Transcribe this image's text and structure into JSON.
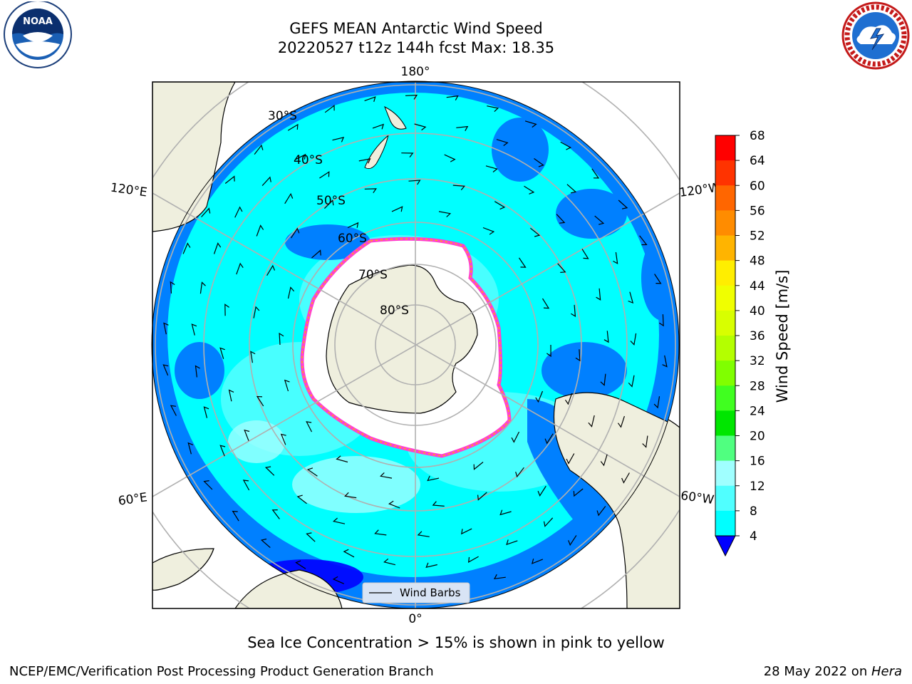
{
  "title": {
    "line1": "GEFS MEAN Antarctic Wind Speed",
    "line2": "20220527 t12z 144h fcst   Max: 18.35"
  },
  "map": {
    "projection": "south-polar-stereographic",
    "longitude_labels": {
      "top": "180°",
      "bottom": "0°",
      "upper_left": "120°E",
      "upper_right": "120°W",
      "lower_left": "60°E",
      "lower_right": "60°W"
    },
    "latitude_labels": [
      "30°S",
      "40°S",
      "50°S",
      "60°S",
      "70°S",
      "80°S"
    ],
    "legend_label": "Wind Barbs"
  },
  "colorbar": {
    "label": "Wind Speed [m/s]",
    "ticks": [
      "68",
      "64",
      "60",
      "56",
      "52",
      "48",
      "44",
      "40",
      "36",
      "32",
      "28",
      "24",
      "20",
      "16",
      "12",
      "8",
      "4"
    ],
    "colors": [
      "#ff0000",
      "#ff3300",
      "#ff6600",
      "#ff8c00",
      "#ffb400",
      "#ffee00",
      "#f0ff00",
      "#d8ff00",
      "#b4ff00",
      "#80ff00",
      "#40ff20",
      "#00e600",
      "#50ff80",
      "#a0ffff",
      "#50ffff",
      "#00ffff",
      "#0080ff"
    ],
    "underflow_color": "#0000ff"
  },
  "caption": "Sea Ice Concentration > 15% is shown in pink to yellow",
  "footer": {
    "left": "NCEP/EMC/Verification Post Processing Product Generation Branch",
    "right_date": "28 May 2022 on ",
    "right_host": "Hera"
  },
  "logos": {
    "noara_text": "NOAA",
    "nws_ring_text": "NATIONAL WEATHER SERVICE"
  }
}
